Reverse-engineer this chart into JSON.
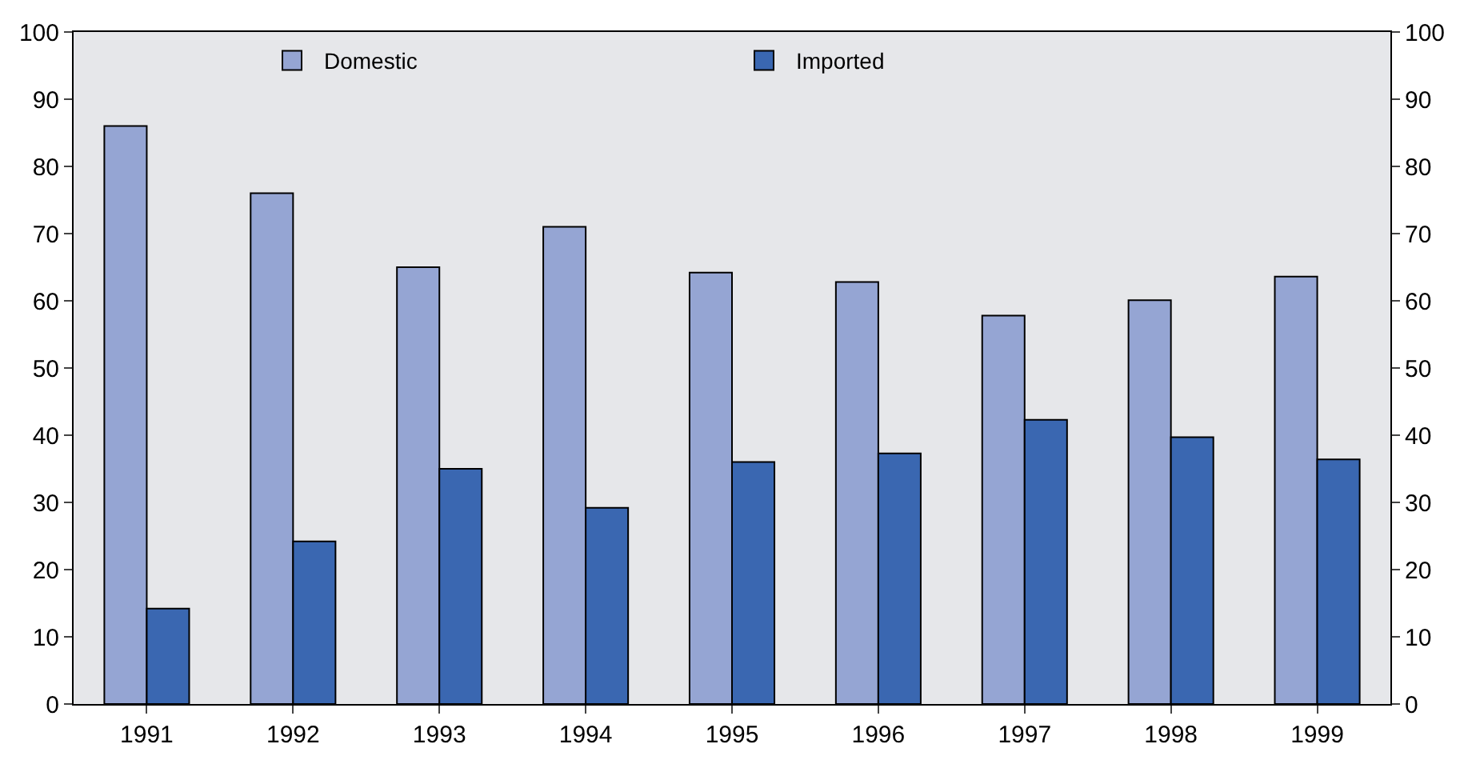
{
  "chart_data": {
    "type": "bar",
    "categories": [
      "1991",
      "1992",
      "1993",
      "1994",
      "1995",
      "1996",
      "1997",
      "1998",
      "1999"
    ],
    "series": [
      {
        "name": "Domestic",
        "color": "#95a5d3",
        "values": [
          86,
          76,
          65,
          71,
          64.2,
          62.8,
          57.8,
          60.1,
          63.6
        ]
      },
      {
        "name": "Imported",
        "color": "#3a67b1",
        "values": [
          14.2,
          24.2,
          35,
          29.2,
          36,
          37.3,
          42.3,
          39.7,
          36.4
        ]
      }
    ],
    "ylim": [
      0,
      100
    ],
    "yticks": [
      0,
      10,
      20,
      30,
      40,
      50,
      60,
      70,
      80,
      90,
      100
    ],
    "y2lim": [
      0,
      100
    ],
    "y2ticks": [
      0,
      10,
      20,
      30,
      40,
      50,
      60,
      70,
      80,
      90,
      100
    ],
    "grid": false,
    "legend": "top"
  }
}
